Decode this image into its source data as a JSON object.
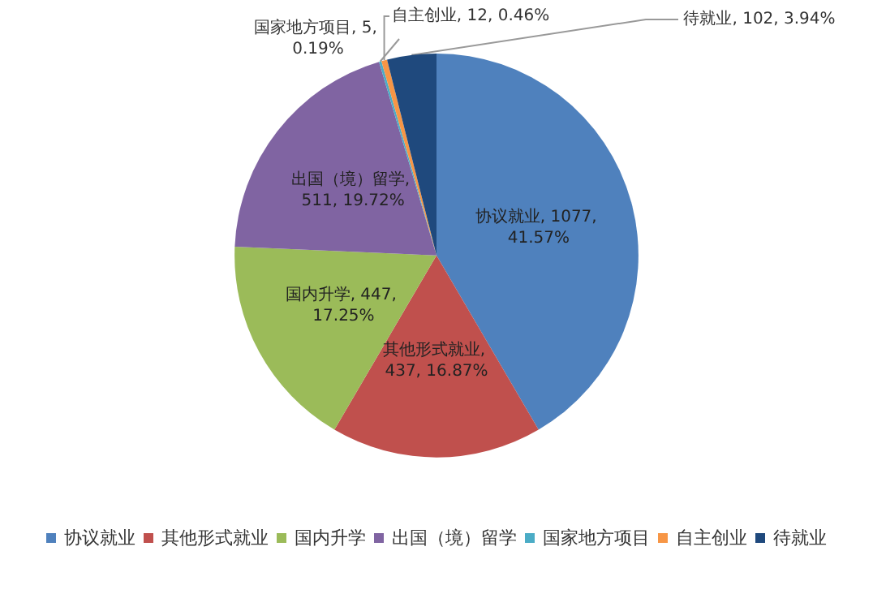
{
  "chart_data": {
    "type": "pie",
    "categories": [
      "协议就业",
      "其他形式就业",
      "国内升学",
      "出国（境）留学",
      "国家地方项目",
      "自主创业",
      "待就业"
    ],
    "values": [
      1077,
      437,
      447,
      511,
      5,
      12,
      102
    ],
    "value_labels": [
      "协议就业, 1077, 41.57%",
      "其他形式就业, 437, 16.87%",
      "国内升学, 447, 17.25%",
      "出国（境）留学, 511, 19.72%",
      "国家地方项目, 5, 0.19%",
      "自主创业, 12, 0.46%",
      "待就业, 102, 3.94%"
    ],
    "colors": [
      "#4f81bd",
      "#c0504d",
      "#9bbb59",
      "#8064a2",
      "#4bacc6",
      "#f79646",
      "#1f497d"
    ],
    "legend": "bottom"
  }
}
